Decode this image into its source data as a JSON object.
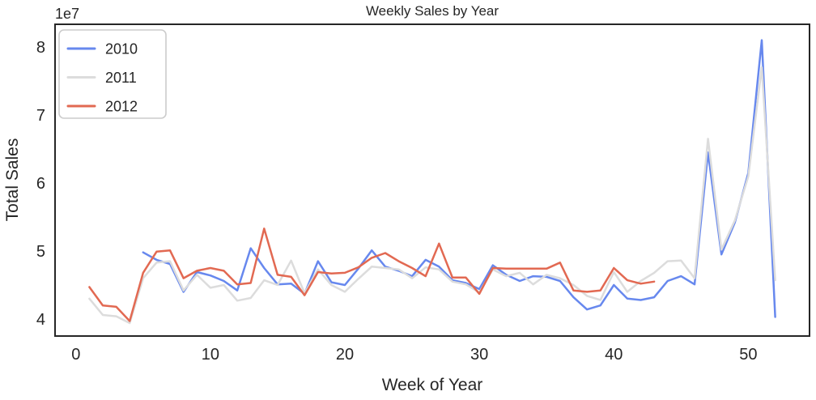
{
  "figure": {
    "title": "Weekly Sales by Year",
    "xlabel": "Week of Year",
    "ylabel": "Total Sales",
    "y_axis_offset_label": "1e7",
    "background_color": "#ffffff",
    "spine_color": "#262626",
    "text_color": "#262626"
  },
  "chart_data": {
    "type": "line",
    "title": "Weekly Sales by Year",
    "xlabel": "Week of Year",
    "ylabel": "Total Sales",
    "y_unit_multiplier": "1e7",
    "xlim": [
      -1.55,
      54.55
    ],
    "ylim": [
      3.75,
      8.333
    ],
    "x_ticks": [
      0,
      10,
      20,
      30,
      40,
      50
    ],
    "y_ticks": [
      4,
      5,
      6,
      7,
      8
    ],
    "grid": false,
    "legend_position": "upper left",
    "series": [
      {
        "name": "2010",
        "color": "#6788ee",
        "x": [
          5,
          6,
          7,
          8,
          9,
          10,
          11,
          12,
          13,
          14,
          15,
          16,
          17,
          18,
          19,
          20,
          21,
          22,
          23,
          24,
          25,
          26,
          27,
          28,
          29,
          30,
          31,
          32,
          33,
          34,
          35,
          36,
          37,
          38,
          39,
          40,
          41,
          42,
          43,
          44,
          45,
          46,
          47,
          48,
          49,
          50,
          51,
          52
        ],
        "y": [
          4.98,
          4.87,
          4.81,
          4.4,
          4.69,
          4.64,
          4.56,
          4.42,
          5.04,
          4.75,
          4.51,
          4.52,
          4.37,
          4.85,
          4.54,
          4.5,
          4.74,
          5.01,
          4.77,
          4.71,
          4.63,
          4.87,
          4.77,
          4.57,
          4.53,
          4.44,
          4.79,
          4.65,
          4.56,
          4.63,
          4.62,
          4.56,
          4.32,
          4.14,
          4.2,
          4.5,
          4.3,
          4.28,
          4.32,
          4.56,
          4.63,
          4.51,
          6.45,
          4.95,
          5.42,
          6.15,
          8.1,
          4.03
        ]
      },
      {
        "name": "2011",
        "color": "#dcdcdc",
        "x": [
          1,
          2,
          3,
          4,
          5,
          6,
          7,
          8,
          9,
          10,
          11,
          12,
          13,
          14,
          15,
          16,
          17,
          18,
          19,
          20,
          21,
          22,
          23,
          24,
          25,
          26,
          27,
          28,
          29,
          30,
          31,
          32,
          33,
          34,
          35,
          36,
          37,
          38,
          39,
          40,
          41,
          42,
          43,
          44,
          45,
          46,
          47,
          48,
          49,
          50,
          51,
          52
        ],
        "y": [
          4.3,
          4.06,
          4.04,
          3.94,
          4.6,
          4.83,
          4.85,
          4.42,
          4.65,
          4.46,
          4.5,
          4.27,
          4.31,
          4.57,
          4.5,
          4.86,
          4.38,
          4.73,
          4.5,
          4.4,
          4.59,
          4.77,
          4.75,
          4.73,
          4.6,
          4.76,
          4.73,
          4.55,
          4.51,
          4.39,
          4.73,
          4.63,
          4.68,
          4.51,
          4.65,
          4.6,
          4.5,
          4.34,
          4.28,
          4.69,
          4.4,
          4.56,
          4.68,
          4.85,
          4.86,
          4.6,
          6.65,
          5.02,
          5.45,
          6.1,
          7.7,
          4.57
        ]
      },
      {
        "name": "2012",
        "color": "#e26952",
        "x": [
          1,
          2,
          3,
          4,
          5,
          6,
          7,
          8,
          9,
          10,
          11,
          12,
          13,
          14,
          15,
          16,
          17,
          18,
          19,
          20,
          21,
          22,
          23,
          24,
          25,
          26,
          27,
          28,
          29,
          30,
          31,
          32,
          33,
          34,
          35,
          36,
          37,
          38,
          39,
          40,
          41,
          42,
          43
        ],
        "y": [
          4.47,
          4.2,
          4.18,
          3.97,
          4.68,
          4.99,
          5.01,
          4.6,
          4.71,
          4.75,
          4.71,
          4.51,
          4.53,
          5.33,
          4.65,
          4.62,
          4.35,
          4.69,
          4.67,
          4.68,
          4.76,
          4.9,
          4.97,
          4.85,
          4.75,
          4.63,
          5.11,
          4.61,
          4.61,
          4.37,
          4.75,
          4.74,
          4.74,
          4.74,
          4.74,
          4.83,
          4.42,
          4.4,
          4.42,
          4.75,
          4.57,
          4.52,
          4.55
        ]
      }
    ]
  }
}
